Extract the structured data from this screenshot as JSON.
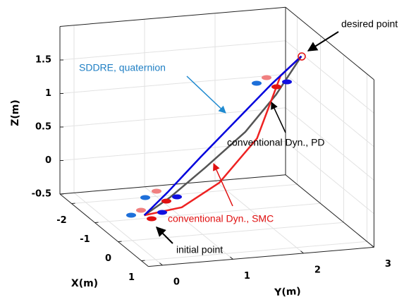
{
  "chart_data": {
    "type": "line3d",
    "xlabel": "X(m)",
    "ylabel": "Y(m)",
    "zlabel": "Z(m)",
    "xlim": [
      -2.5,
      1.3
    ],
    "ylim": [
      -0.2,
      3
    ],
    "zlim": [
      -0.5,
      2
    ],
    "xticks": [
      -2,
      -1,
      0,
      1
    ],
    "yticks": [
      0,
      1,
      2,
      3
    ],
    "zticks": [
      -0.5,
      0,
      0.5,
      1,
      1.5
    ],
    "grid": true,
    "series": [
      {
        "color": "#555555",
        "x": [
          -1.15,
          -1.1,
          -1.1,
          -1.2,
          -1.4,
          -1.7
        ],
        "y": [
          0.55,
          0.9,
          1.4,
          2.0,
          2.5,
          2.96
        ],
        "z": [
          -0.5,
          -0.25,
          0.15,
          0.6,
          1.05,
          1.5
        ]
      },
      {
        "color": "#ee2222",
        "x": [
          -1.15,
          -0.9,
          -0.8,
          -1.0,
          -1.5,
          -1.7
        ],
        "y": [
          0.55,
          1.0,
          1.5,
          2.1,
          2.6,
          2.96
        ],
        "z": [
          -0.5,
          -0.35,
          0.0,
          0.55,
          1.3,
          1.5
        ]
      },
      {
        "color": "#0000dd",
        "x": [
          -1.15,
          -1.2,
          -1.3,
          -1.45,
          -1.6,
          -1.7
        ],
        "y": [
          0.55,
          0.9,
          1.4,
          2.0,
          2.5,
          2.96
        ],
        "z": [
          -0.5,
          -0.2,
          0.25,
          0.75,
          1.15,
          1.5
        ]
      }
    ],
    "annotations": [
      "desired point",
      "SDDRE, quaternion",
      "conventional Dyn., PD",
      "conventional Dyn., SMC",
      "initial point"
    ]
  }
}
